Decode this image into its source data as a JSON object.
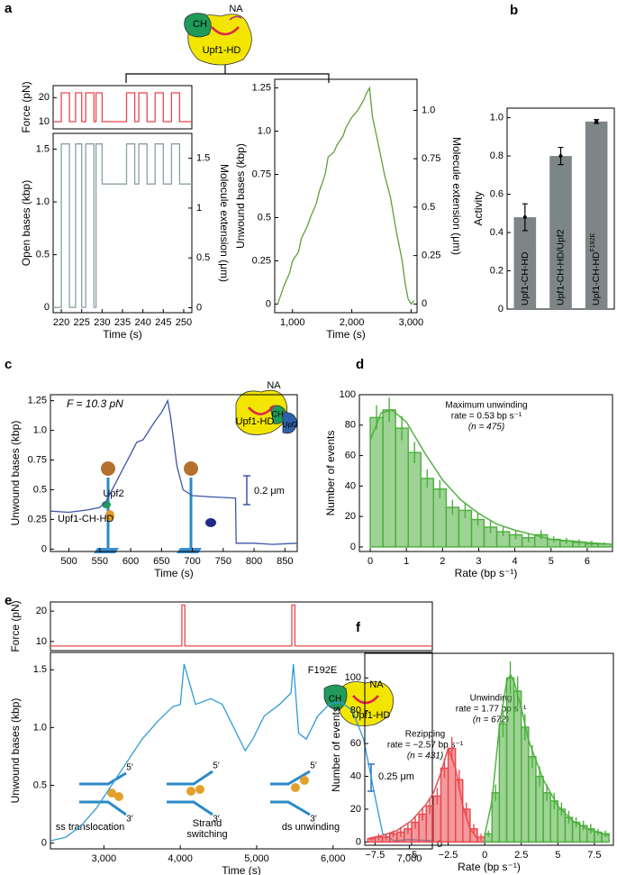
{
  "chart_data": [
    {
      "type": "line",
      "panel": "a",
      "ylabel": "Force (pN)",
      "label_color": "#e8474d",
      "color": "#e8474d",
      "xlim": [
        218,
        252
      ],
      "ylim": [
        7,
        25
      ],
      "yticks": [
        10,
        20
      ],
      "x": [
        218,
        220,
        220,
        222,
        222,
        223.5,
        223.5,
        225,
        225,
        226,
        226,
        228,
        228,
        228.5,
        228.5,
        230,
        230,
        236,
        236,
        238,
        238,
        239,
        239,
        241,
        241,
        243,
        243,
        245,
        245,
        247,
        247,
        249,
        249,
        252
      ],
      "values": [
        10,
        10,
        22,
        22,
        10,
        10,
        22,
        22,
        10,
        10,
        22,
        22,
        10,
        10,
        22,
        22,
        10,
        10,
        22,
        22,
        10,
        10,
        22,
        22,
        10,
        10,
        22,
        22,
        10,
        10,
        22,
        22,
        10,
        10
      ],
      "annotations": [
        "CH",
        "NA",
        "Upf1-HD"
      ]
    },
    {
      "type": "line",
      "ylabel": "Open bases (kbp)",
      "y2label": "Molecule extension (μm)",
      "xlabel": "Time (s)",
      "color": "#8aa0a6",
      "xlim": [
        218,
        252
      ],
      "xticks": [
        220,
        225,
        230,
        235,
        240,
        245,
        250
      ],
      "ylim": [
        -0.05,
        1.65
      ],
      "yticks": [
        0,
        0.5,
        {
          "value": 1,
          "label": "1.0"
        },
        1.5
      ],
      "y2lim": [
        -0.05,
        1.75
      ],
      "y2ticks": [
        0,
        0.5,
        1,
        1.5
      ],
      "x": [
        218,
        220,
        220,
        222,
        222,
        223.5,
        223.5,
        225,
        225,
        226,
        226,
        228,
        228,
        228.5,
        228.5,
        230,
        230,
        236,
        236,
        238,
        238,
        239,
        239,
        241,
        241,
        243,
        243,
        245,
        245,
        247,
        247,
        249,
        249,
        252
      ],
      "values": [
        0,
        0,
        1.55,
        1.55,
        0,
        0,
        1.55,
        1.55,
        0,
        0,
        1.55,
        1.55,
        0,
        0,
        1.55,
        1.55,
        1.17,
        1.17,
        1.55,
        1.55,
        1.17,
        1.17,
        1.55,
        1.55,
        1.17,
        1.17,
        1.55,
        1.55,
        1.17,
        1.17,
        1.55,
        1.55,
        1.17,
        1.17
      ]
    },
    {
      "type": "line",
      "ylabel": "Unwound bases (kbp)",
      "y2label": "Molecule extension (μm)",
      "xlabel": "Time (s)",
      "color": "#5f9e3c",
      "xlim": [
        700,
        3100
      ],
      "xticks": [
        {
          "value": 1000,
          "label": "1,000"
        },
        {
          "value": 2000,
          "label": "2,000"
        },
        {
          "value": 3000,
          "label": "3,000"
        }
      ],
      "ylim": [
        -0.05,
        1.3
      ],
      "yticks": [
        0,
        0.25,
        0.5,
        0.75,
        {
          "value": 1,
          "label": "1.0"
        },
        1.25
      ],
      "y2lim": [
        -0.045,
        1.16
      ],
      "y2ticks": [
        0,
        0.25,
        0.5,
        0.75,
        {
          "value": 1,
          "label": "1.0"
        }
      ],
      "x": [
        750,
        850,
        950,
        1000,
        1100,
        1150,
        1250,
        1300,
        1400,
        1450,
        1550,
        1600,
        1700,
        1750,
        1850,
        1900,
        2000,
        2100,
        2200,
        2250,
        2300,
        2350,
        2450,
        2550,
        2650,
        2750,
        2850,
        2900,
        2950,
        3000,
        3050
      ],
      "values": [
        0,
        0.1,
        0.18,
        0.25,
        0.3,
        0.38,
        0.45,
        0.5,
        0.58,
        0.65,
        0.75,
        0.85,
        0.88,
        0.92,
        0.97,
        1.02,
        1.08,
        1.12,
        1.18,
        1.22,
        1.25,
        1.08,
        0.92,
        0.75,
        0.62,
        0.42,
        0.25,
        0.12,
        0.03,
        0,
        0.02
      ]
    },
    {
      "type": "bar",
      "panel": "b",
      "ylabel": "Activity",
      "label_color": "#999999",
      "color": "#7d8587",
      "categories": [
        "Upf1-CH-HD",
        "Upf1-CH-HD/Upf2",
        "Upf1-CH-HD"
      ],
      "sup": "F192E",
      "values": [
        0.48,
        0.8,
        0.98
      ],
      "errors": [
        0.07,
        0.045,
        0.01
      ],
      "ylim": [
        0,
        1.05
      ],
      "yticks": [
        0,
        0.2,
        0.4,
        0.6,
        0.8,
        {
          "value": 1,
          "label": "1.0"
        }
      ]
    },
    {
      "type": "line",
      "panel": "c",
      "ylabel": "Unwound bases (kbp)",
      "label_color": "#3d55a5",
      "xlabel": "Time (s)",
      "color": "#3d55a5",
      "xlim": [
        470,
        870
      ],
      "xticks": [
        500,
        550,
        600,
        650,
        700,
        750,
        800,
        850
      ],
      "ylim": [
        -0.02,
        1.3
      ],
      "yticks": [
        0,
        0.25,
        0.5,
        0.75,
        {
          "value": 1,
          "label": "1.0"
        },
        1.25
      ],
      "x": [
        470,
        500,
        530,
        550,
        560,
        575,
        590,
        600,
        610,
        620,
        630,
        640,
        650,
        660,
        665,
        675,
        685,
        700,
        730,
        770,
        771,
        800,
        830,
        870
      ],
      "values": [
        0.32,
        0.31,
        0.33,
        0.35,
        0.4,
        0.55,
        0.7,
        0.8,
        0.9,
        0.92,
        1.0,
        1.08,
        1.15,
        1.25,
        1.1,
        0.7,
        0.5,
        0.45,
        0.44,
        0.43,
        0.05,
        0.05,
        0.04,
        0.05
      ],
      "annotations": [
        "F = 10.3 pN",
        "0.2 μm",
        "Upf2",
        "Upf1-CH-HD",
        "Upf1-HD",
        "CH",
        "Upf2",
        "NA"
      ]
    },
    {
      "type": "histogram",
      "panel": "d",
      "ylabel": "Number of events",
      "xlabel": "Rate (bp s⁻¹)",
      "xlim": [
        -0.3,
        6.7
      ],
      "xticks": [
        0,
        1,
        2,
        3,
        4,
        5,
        6
      ],
      "ylim": [
        -3,
        100
      ],
      "yticks": [
        0,
        20,
        40,
        60,
        80,
        100
      ],
      "histograms": [
        {
          "color": "#4cae3d",
          "bins": [
            0,
            0.35,
            0.7,
            1.05,
            1.4,
            1.75,
            2.1,
            2.45,
            2.8,
            3.15,
            3.5,
            3.85,
            4.2,
            4.55,
            4.9,
            5.25,
            5.6,
            5.95,
            6.3,
            6.65
          ],
          "values": [
            85,
            90,
            78,
            62,
            45,
            38,
            26,
            24,
            18,
            13,
            10,
            8,
            6,
            8,
            5,
            4,
            3,
            2,
            2
          ],
          "errors": [
            8,
            8,
            8,
            7,
            6,
            6,
            5,
            5,
            4,
            4,
            3,
            3,
            3,
            3,
            2,
            2,
            2,
            2,
            1
          ],
          "fit_x": [
            0,
            0.3,
            0.6,
            1,
            1.5,
            2,
            2.5,
            3,
            3.5,
            4,
            4.5,
            5,
            5.5,
            6,
            6.5
          ],
          "fit": [
            70,
            88,
            90,
            82,
            62,
            44,
            31,
            22,
            15,
            11,
            8,
            5,
            4,
            3,
            2
          ]
        }
      ],
      "annotations": [
        "Maximum unwinding",
        "rate = 0.53 bp s⁻¹",
        "(n = 475)"
      ]
    },
    {
      "type": "line",
      "panel": "e",
      "ylabel": "Force (pN)",
      "label_color": "#e8474d",
      "color": "#e8474d",
      "xlim": [
        2300,
        7300
      ],
      "ylim": [
        7,
        23
      ],
      "yticks": [
        10,
        20
      ],
      "x": [
        2300,
        4020,
        4020,
        4060,
        4060,
        5460,
        5460,
        5500,
        5500,
        7300
      ],
      "values": [
        8.5,
        8.5,
        22,
        22,
        8.5,
        8.5,
        22,
        22,
        8.5,
        8.5
      ]
    },
    {
      "type": "line",
      "ylabel": "Unwound bases (kbp)",
      "label_color": "#2f9bd6",
      "xlabel": "Time (s)",
      "color": "#2f9bd6",
      "xlim": [
        2300,
        7300
      ],
      "xticks": [
        {
          "value": 3000,
          "label": "3,000"
        },
        {
          "value": 4000,
          "label": "4,000"
        },
        {
          "value": 5000,
          "label": "5,000"
        },
        {
          "value": 6000,
          "label": "6,000"
        },
        {
          "value": 7000,
          "label": "7,000"
        }
      ],
      "ylim": [
        -0.05,
        1.65
      ],
      "yticks": [
        0,
        0.5,
        {
          "value": 1,
          "label": "1.0"
        },
        1.5
      ],
      "x": [
        2300,
        2500,
        2700,
        2900,
        3100,
        3300,
        3500,
        3700,
        3900,
        4000,
        4050,
        4200,
        4400,
        4550,
        4700,
        4850,
        4950,
        5100,
        5300,
        5450,
        5480,
        5550,
        5650,
        5800,
        5950,
        6100,
        6250,
        6400,
        6550,
        6650,
        6800,
        7000,
        7300
      ],
      "values": [
        0.02,
        0.05,
        0.15,
        0.3,
        0.5,
        0.7,
        0.9,
        1.05,
        1.18,
        1.2,
        1.55,
        1.2,
        1.25,
        1.2,
        1.0,
        0.8,
        0.9,
        1.1,
        1.2,
        1.3,
        1.55,
        0.95,
        0.9,
        1.1,
        1.2,
        1.22,
        1.15,
        0.9,
        0.4,
        0.08,
        0.02,
        0.03,
        0.02
      ],
      "annotations": [
        "ss translocation",
        "Strand",
        "switching",
        "ds unwinding",
        "0.25 μm",
        "0",
        "F192E",
        "CH",
        "NA",
        "Upf1-HD",
        "5′",
        "3′",
        "5′",
        "3′",
        "5′",
        "3′"
      ]
    },
    {
      "type": "histogram",
      "panel": "f",
      "ylabel": "Number of events",
      "xlabel": "Rate (bp s⁻¹)",
      "xlim": [
        -8.2,
        8.8
      ],
      "xticks": [
        {
          "value": -7.5,
          "label": "−7.5"
        },
        {
          "value": -5,
          "label": "−5"
        },
        {
          "value": -2.5,
          "label": "−2.5"
        },
        0,
        2.5,
        5,
        7.5
      ],
      "ylim": [
        -2,
        115
      ],
      "yticks": [
        0,
        20,
        40,
        60,
        80,
        100
      ],
      "histograms": [
        {
          "color": "#e8474d",
          "bins": [
            -8,
            -7.5,
            -7,
            -6.5,
            -6,
            -5.5,
            -5,
            -4.5,
            -4,
            -3.5,
            -3,
            -2.5,
            -2,
            -1.5,
            -1,
            -0.5,
            0
          ],
          "values": [
            2,
            3,
            3,
            5,
            6,
            8,
            12,
            17,
            22,
            28,
            45,
            57,
            38,
            20,
            8,
            3
          ],
          "errors": [
            1,
            2,
            2,
            2,
            3,
            3,
            4,
            4,
            5,
            5,
            6,
            7,
            6,
            4,
            3,
            2
          ],
          "fit_x": [
            -8,
            -7,
            -6,
            -5,
            -4,
            -3.5,
            -3,
            -2.5,
            -2,
            -1.5,
            -1,
            -0.5
          ],
          "fit": [
            2,
            4,
            7,
            13,
            23,
            30,
            42,
            57,
            45,
            22,
            8,
            2
          ]
        },
        {
          "color": "#4cae3d",
          "bins": [
            0,
            0.5,
            1,
            1.5,
            2,
            2.5,
            3,
            3.5,
            4,
            4.5,
            5,
            5.5,
            6,
            6.5,
            7,
            7.5,
            8,
            8.5
          ],
          "values": [
            5,
            30,
            72,
            100,
            92,
            70,
            52,
            40,
            30,
            25,
            20,
            15,
            12,
            10,
            8,
            6,
            5
          ],
          "errors": [
            2,
            5,
            8,
            10,
            9,
            8,
            7,
            6,
            5,
            5,
            4,
            4,
            3,
            3,
            3,
            2,
            2
          ],
          "fit_x": [
            0,
            0.5,
            1,
            1.5,
            1.77,
            2,
            2.5,
            3,
            4,
            5,
            6,
            7,
            8.5
          ],
          "fit": [
            4,
            25,
            70,
            98,
            102,
            98,
            82,
            62,
            38,
            22,
            13,
            8,
            4
          ]
        }
      ],
      "annotations": [
        "Unwinding",
        "rate = 1.77 bp s⁻¹",
        "(n = 672)",
        "Rezipping",
        "rate = −2.57 bp s⁻¹",
        "(n = 431)"
      ]
    }
  ]
}
